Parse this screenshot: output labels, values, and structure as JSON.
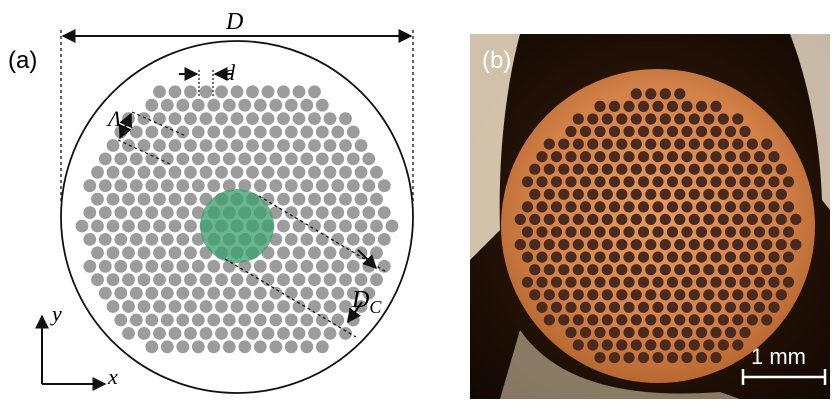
{
  "panel_a": {
    "label": "(a)",
    "dim_outer_diameter": "D",
    "dim_hole_diameter": "d",
    "dim_pitch": "Λ",
    "dim_core_main": "D",
    "dim_core_sub": "C",
    "axis_x": "x",
    "axis_y": "y",
    "hole_color": "#9c9c9c",
    "core_color": "#3fa070"
  },
  "panel_b": {
    "label": "(b)",
    "scale_bar_label": "1 mm",
    "fiber_color": "#d98a52",
    "hole_color": "#4a2a1c"
  }
}
